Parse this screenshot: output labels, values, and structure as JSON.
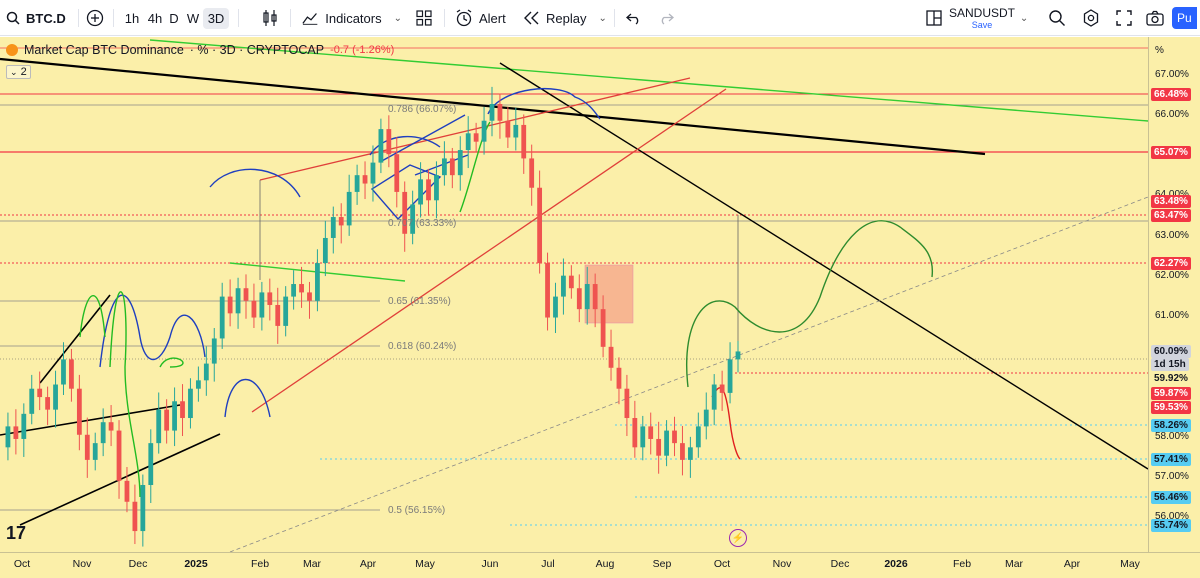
{
  "toolbar": {
    "symbol": "BTC.D",
    "intervals": [
      "1h",
      "4h",
      "D",
      "W",
      "3D"
    ],
    "active_interval": "3D",
    "indicators_label": "Indicators",
    "alert_label": "Alert",
    "replay_label": "Replay",
    "layout_name": "SANDUSDT",
    "save_label": "Save",
    "publish_label": "Pu"
  },
  "legend": {
    "title": "Market Cap BTC Dominance",
    "suffix": "· % · 3D · CRYPTOCAP",
    "change": "-0.7 (-1.26%)",
    "collapse": "2"
  },
  "price_scale": {
    "unit": "%",
    "ticks": [
      "67.00%",
      "66.00%",
      "64.00%",
      "63.00%",
      "62.00%",
      "61.00%",
      "60.09%",
      "58.00%",
      "57.00%",
      "56.00%"
    ],
    "labels": [
      {
        "text": "66.48%",
        "bg": "#f23645",
        "fg": "#ffffff"
      },
      {
        "text": "65.07%",
        "bg": "#f23645",
        "fg": "#ffffff"
      },
      {
        "text": "63.48%",
        "bg": "#f23645",
        "fg": "#ffffff"
      },
      {
        "text": "63.47%",
        "bg": "#f23645",
        "fg": "#ffffff"
      },
      {
        "text": "62.27%",
        "bg": "#f23645",
        "fg": "#ffffff"
      },
      {
        "text": "60.09%",
        "bg": "#d1d4dc",
        "fg": "#131722"
      },
      {
        "text": "1d 15h",
        "bg": "#d1d4dc",
        "fg": "#131722"
      },
      {
        "text": "59.92%",
        "bg": "#fbefa9",
        "fg": "#131722"
      },
      {
        "text": "59.87%",
        "bg": "#f23645",
        "fg": "#ffffff"
      },
      {
        "text": "59.53%",
        "bg": "#f23645",
        "fg": "#ffffff"
      },
      {
        "text": "58.26%",
        "bg": "#56ccf2",
        "fg": "#131722"
      },
      {
        "text": "57.41%",
        "bg": "#56ccf2",
        "fg": "#131722"
      },
      {
        "text": "56.46%",
        "bg": "#56ccf2",
        "fg": "#131722"
      },
      {
        "text": "55.74%",
        "bg": "#56ccf2",
        "fg": "#131722"
      }
    ]
  },
  "time_scale": [
    "Oct",
    "Nov",
    "Dec",
    "2025",
    "Feb",
    "Mar",
    "Apr",
    "May",
    "Jun",
    "Jul",
    "Aug",
    "Sep",
    "Oct",
    "Nov",
    "Dec",
    "2026",
    "Feb",
    "Mar",
    "Apr",
    "May"
  ],
  "fib_levels": [
    "0.786 (66.07%)",
    "0.707 (63.33%)",
    "0.65 (61.35%)",
    "0.618 (60.24%)",
    "0.5 (56.15%)"
  ],
  "chart_data": {
    "type": "candlestick",
    "title": "Market Cap BTC Dominance",
    "ylabel": "%",
    "ylim": [
      55.4,
      67.5
    ],
    "price_unit": "%",
    "x": [
      "Oct",
      "Nov",
      "Dec",
      "2025",
      "Feb",
      "Mar",
      "Apr",
      "May",
      "Jun",
      "Jul",
      "Aug",
      "Sep",
      "Oct"
    ],
    "close_path": [
      57.8,
      58.3,
      58.0,
      58.6,
      59.2,
      59.0,
      58.7,
      59.3,
      59.9,
      59.2,
      58.1,
      57.5,
      57.9,
      58.4,
      58.2,
      57.0,
      56.5,
      55.8,
      56.9,
      57.9,
      58.7,
      58.2,
      58.9,
      58.5,
      59.2,
      59.4,
      59.8,
      60.4,
      61.4,
      61.0,
      61.6,
      61.3,
      60.9,
      61.5,
      61.2,
      60.7,
      61.4,
      61.7,
      61.5,
      61.3,
      62.2,
      62.8,
      63.3,
      63.1,
      63.9,
      64.3,
      64.1,
      64.6,
      65.4,
      64.8,
      63.9,
      62.9,
      63.6,
      64.2,
      63.7,
      64.3,
      64.7,
      64.3,
      64.9,
      65.3,
      65.1,
      65.6,
      66.0,
      65.6,
      65.2,
      65.5,
      64.7,
      64.0,
      62.2,
      60.9,
      61.4,
      61.9,
      61.6,
      61.1,
      61.7,
      61.1,
      60.2,
      59.7,
      59.2,
      58.5,
      57.8,
      58.3,
      58.0,
      57.6,
      58.2,
      57.9,
      57.5,
      57.8,
      58.3,
      58.7,
      59.3,
      59.1,
      59.9,
      60.09
    ],
    "annotations": [
      "0.786 (66.07%)",
      "0.707 (63.33%)",
      "0.65 (61.35%)",
      "0.618 (60.24%)",
      "0.5 (56.15%)"
    ]
  },
  "colors": {
    "background": "#fbefa9",
    "up": "#26a69a",
    "down": "#ef5350",
    "red_level": "#f23645",
    "cyan_level": "#56ccf2"
  },
  "icons": [
    "search-icon",
    "plus-circle-icon",
    "candles-icon",
    "indicators-icon",
    "templates-icon",
    "alert-icon",
    "replay-icon",
    "undo-icon",
    "redo-icon",
    "layout-icon",
    "quick-search-icon",
    "settings-icon",
    "fullscreen-icon",
    "camera-icon"
  ]
}
